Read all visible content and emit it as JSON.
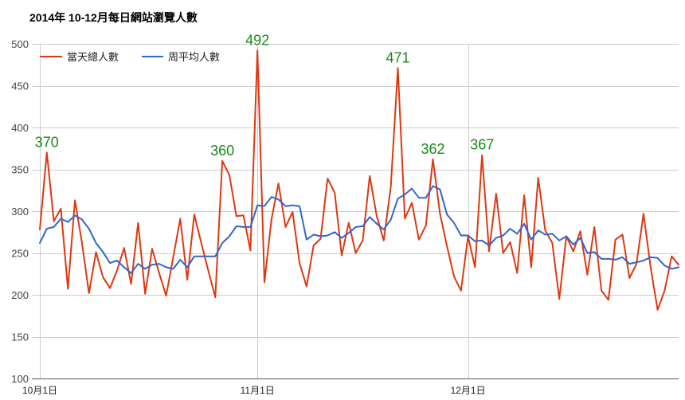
{
  "chart_data": {
    "type": "line",
    "title": "2014年 10-12月每日網站瀏覽人數",
    "ylim": [
      100,
      500
    ],
    "yticks": [
      100,
      150,
      200,
      250,
      300,
      350,
      400,
      450,
      500
    ],
    "xticks": [
      {
        "x": "2014-10-01",
        "label": "10月1日"
      },
      {
        "x": "2014-11-01",
        "label": "11月1日"
      },
      {
        "x": "2014-12-01",
        "label": "12月1日"
      }
    ],
    "legend": "top-left",
    "grid": true,
    "x": [
      "2014-10-01",
      "2014-10-02",
      "2014-10-03",
      "2014-10-04",
      "2014-10-05",
      "2014-10-06",
      "2014-10-07",
      "2014-10-08",
      "2014-10-09",
      "2014-10-10",
      "2014-10-11",
      "2014-10-12",
      "2014-10-13",
      "2014-10-14",
      "2014-10-15",
      "2014-10-16",
      "2014-10-17",
      "2014-10-18",
      "2014-10-19",
      "2014-10-20",
      "2014-10-21",
      "2014-10-22",
      "2014-10-23",
      "2014-10-24",
      "2014-10-25",
      "2014-10-26",
      "2014-10-27",
      "2014-10-28",
      "2014-10-29",
      "2014-10-30",
      "2014-10-31",
      "2014-11-01",
      "2014-11-02",
      "2014-11-03",
      "2014-11-04",
      "2014-11-05",
      "2014-11-06",
      "2014-11-07",
      "2014-11-08",
      "2014-11-09",
      "2014-11-10",
      "2014-11-11",
      "2014-11-12",
      "2014-11-13",
      "2014-11-14",
      "2014-11-15",
      "2014-11-16",
      "2014-11-17",
      "2014-11-18",
      "2014-11-19",
      "2014-11-20",
      "2014-11-21",
      "2014-11-22",
      "2014-11-23",
      "2014-11-24",
      "2014-11-25",
      "2014-11-26",
      "2014-11-27",
      "2014-11-28",
      "2014-11-29",
      "2014-11-30",
      "2014-12-01",
      "2014-12-02",
      "2014-12-03",
      "2014-12-04",
      "2014-12-05",
      "2014-12-06",
      "2014-12-07",
      "2014-12-08",
      "2014-12-09",
      "2014-12-10",
      "2014-12-11",
      "2014-12-12",
      "2014-12-13",
      "2014-12-14",
      "2014-12-15",
      "2014-12-16",
      "2014-12-17",
      "2014-12-18",
      "2014-12-19",
      "2014-12-20",
      "2014-12-21",
      "2014-12-22",
      "2014-12-23",
      "2014-12-24",
      "2014-12-25",
      "2014-12-26",
      "2014-12-27",
      "2014-12-28",
      "2014-12-29",
      "2014-12-30",
      "2014-12-31"
    ],
    "series": [
      {
        "name": "當天總人數",
        "color": "#dc3912",
        "values": [
          278,
          370,
          288,
          303,
          207,
          313,
          262,
          202,
          251,
          221,
          208,
          229,
          256,
          213,
          286,
          201,
          255,
          226,
          199,
          245,
          291,
          218,
          296,
          262,
          229,
          197,
          360,
          343,
          294,
          295,
          253,
          492,
          215,
          290,
          333,
          281,
          299,
          238,
          210,
          259,
          267,
          339,
          322,
          247,
          286,
          250,
          265,
          342,
          294,
          265,
          330,
          471,
          291,
          310,
          266,
          283,
          362,
          297,
          258,
          222,
          205,
          270,
          233,
          367,
          252,
          321,
          250,
          263,
          226,
          319,
          233,
          340,
          277,
          262,
          195,
          270,
          252,
          276,
          224,
          281,
          205,
          194,
          266,
          272,
          220,
          237,
          297,
          234,
          182,
          205,
          246,
          236
        ]
      },
      {
        "name": "周平均人數",
        "color": "#3366cc",
        "values": [
          262,
          279,
          281,
          291,
          287,
          295,
          290,
          279,
          262,
          251,
          238,
          241,
          233,
          226,
          237,
          231,
          236,
          237,
          233,
          231,
          242,
          233,
          246,
          246,
          246,
          246,
          262,
          270,
          282,
          281,
          281,
          307,
          306,
          317,
          314,
          306,
          307,
          306,
          266,
          272,
          270,
          271,
          275,
          268,
          274,
          281,
          282,
          293,
          285,
          278,
          290,
          315,
          320,
          327,
          316,
          316,
          330,
          326,
          296,
          286,
          271,
          271,
          264,
          265,
          259,
          268,
          271,
          279,
          273,
          285,
          266,
          277,
          272,
          273,
          265,
          270,
          260,
          268,
          250,
          251,
          243,
          243,
          242,
          245,
          237,
          239,
          241,
          245,
          244,
          235,
          231,
          233
        ]
      }
    ],
    "annotations": [
      {
        "x": "2014-10-02",
        "label": "370"
      },
      {
        "x": "2014-10-27",
        "label": "360"
      },
      {
        "x": "2014-11-01",
        "label": "492"
      },
      {
        "x": "2014-11-21",
        "label": "471"
      },
      {
        "x": "2014-11-26",
        "label": "362"
      },
      {
        "x": "2014-12-03",
        "label": "367"
      }
    ],
    "annotation_color": "#178a17"
  }
}
